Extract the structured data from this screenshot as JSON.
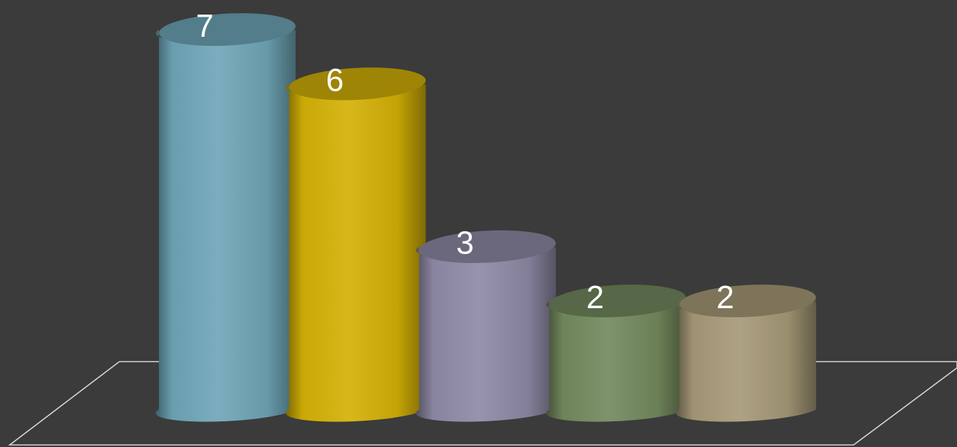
{
  "chart_data": {
    "type": "bar",
    "style": "3d-cylinder",
    "categories": [
      "",
      "",
      "",
      "",
      ""
    ],
    "values": [
      7,
      6,
      3,
      2,
      2
    ],
    "data_labels": [
      "7",
      "6",
      "3",
      "2",
      "2"
    ],
    "colors": [
      "#6fa6b8",
      "#d4b106",
      "#8f8aa6",
      "#738a5e",
      "#a69a78"
    ],
    "title": "",
    "xlabel": "",
    "ylabel": "",
    "ylim": [
      0,
      7
    ],
    "grid": false,
    "legend": "none"
  },
  "theme": {
    "background": "#3b3b3b",
    "floor_line_color": "#d9d9d9",
    "label_color": "#ffffff"
  }
}
